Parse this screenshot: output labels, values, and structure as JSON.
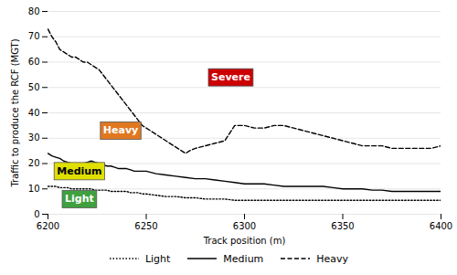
{
  "chart_data": {
    "type": "line",
    "xlabel": "Track position (m)",
    "ylabel": "Traffic to produce the RCF (MGT)",
    "xlim": [
      6200,
      6400
    ],
    "ylim": [
      0,
      80
    ],
    "xticks": [
      6200,
      6250,
      6300,
      6350,
      6400
    ],
    "yticks": [
      0,
      10,
      20,
      30,
      40,
      50,
      60,
      70,
      80
    ],
    "grid": true,
    "legend": "bottom",
    "series": [
      {
        "name": "Light",
        "color": "black",
        "line_style": "dotted",
        "x": [
          6200,
          6202,
          6204,
          6206,
          6208,
          6210,
          6212,
          6214,
          6216,
          6218,
          6220,
          6222,
          6224,
          6226,
          6228,
          6230,
          6232,
          6234,
          6236,
          6238,
          6240,
          6242,
          6244,
          6246,
          6248,
          6250,
          6255,
          6260,
          6265,
          6270,
          6275,
          6280,
          6285,
          6290,
          6295,
          6300,
          6305,
          6310,
          6315,
          6320,
          6325,
          6330,
          6335,
          6340,
          6345,
          6350,
          6355,
          6360,
          6365,
          6370,
          6375,
          6380,
          6385,
          6390,
          6395,
          6400
        ],
        "values": [
          11,
          11,
          11,
          10.5,
          10.5,
          10.5,
          10,
          10,
          10,
          10,
          10,
          10,
          9.5,
          9.5,
          9.5,
          9.5,
          9,
          9,
          9,
          9,
          9,
          8.5,
          8.5,
          8.5,
          8,
          8,
          7.5,
          7,
          7,
          6.5,
          6.5,
          6,
          6,
          6,
          5.5,
          5.5,
          5.5,
          5.5,
          5.5,
          5.5,
          5.5,
          5.5,
          5.5,
          5.5,
          5.5,
          5.5,
          5.5,
          5.5,
          5.5,
          5.5,
          5.5,
          5.5,
          5.5,
          5.5,
          5.5,
          5.5
        ]
      },
      {
        "name": "Medium",
        "color": "black",
        "line_style": "solid",
        "x": [
          6200,
          6202,
          6204,
          6206,
          6208,
          6210,
          6212,
          6214,
          6216,
          6218,
          6220,
          6222,
          6224,
          6226,
          6228,
          6230,
          6232,
          6234,
          6236,
          6238,
          6240,
          6242,
          6244,
          6246,
          6248,
          6250,
          6255,
          6260,
          6265,
          6270,
          6275,
          6280,
          6285,
          6290,
          6295,
          6300,
          6305,
          6310,
          6315,
          6320,
          6325,
          6330,
          6335,
          6340,
          6345,
          6350,
          6355,
          6360,
          6365,
          6370,
          6375,
          6380,
          6385,
          6390,
          6395,
          6400
        ],
        "values": [
          24,
          23,
          22.5,
          22,
          21,
          20.5,
          20,
          20,
          20,
          20,
          20.5,
          21,
          20.5,
          20,
          19.5,
          19,
          19,
          18.5,
          18,
          18,
          18,
          17.5,
          17,
          17,
          17,
          17,
          16,
          15.5,
          15,
          14.5,
          14,
          14,
          13.5,
          13,
          12.5,
          12,
          12,
          12,
          11.5,
          11,
          11,
          11,
          11,
          11,
          10.5,
          10,
          10,
          10,
          9.5,
          9.5,
          9,
          9,
          9,
          9,
          9,
          9
        ]
      },
      {
        "name": "Heavy",
        "color": "black",
        "line_style": "dashed",
        "x": [
          6200,
          6202,
          6204,
          6206,
          6208,
          6210,
          6212,
          6214,
          6216,
          6218,
          6220,
          6222,
          6224,
          6226,
          6228,
          6230,
          6232,
          6234,
          6236,
          6238,
          6240,
          6242,
          6244,
          6246,
          6248,
          6250,
          6252,
          6254,
          6256,
          6258,
          6260,
          6262,
          6264,
          6266,
          6268,
          6270,
          6272,
          6275,
          6280,
          6285,
          6290,
          6295,
          6300,
          6305,
          6310,
          6315,
          6320,
          6325,
          6330,
          6335,
          6340,
          6345,
          6350,
          6355,
          6360,
          6365,
          6370,
          6375,
          6380,
          6385,
          6390,
          6395,
          6400
        ],
        "values": [
          73,
          70,
          68,
          65,
          64,
          63,
          62,
          62,
          61,
          60,
          60,
          59,
          58,
          57,
          55,
          53,
          51,
          49,
          47,
          45,
          43,
          41,
          39,
          37,
          35,
          34,
          33,
          32,
          31,
          30,
          29,
          28,
          27,
          26,
          25,
          24,
          25,
          26,
          27,
          28,
          29,
          35,
          35,
          34,
          34,
          35,
          35,
          34,
          33,
          32,
          31,
          30,
          29,
          28,
          27,
          27,
          27,
          26,
          26,
          26,
          26,
          26,
          27
        ]
      }
    ],
    "annotations": [
      {
        "text": "Severe",
        "x": 6293,
        "y": 54,
        "color": "#cc0000",
        "text_color": "white"
      },
      {
        "text": "Heavy",
        "x": 6237,
        "y": 33,
        "color": "#e07820",
        "text_color": "white"
      },
      {
        "text": "Medium",
        "x": 6216,
        "y": 17,
        "color": "#e0e000",
        "text_color": "black"
      },
      {
        "text": "Light",
        "x": 6216,
        "y": 6,
        "color": "#40a040",
        "text_color": "white"
      }
    ]
  }
}
